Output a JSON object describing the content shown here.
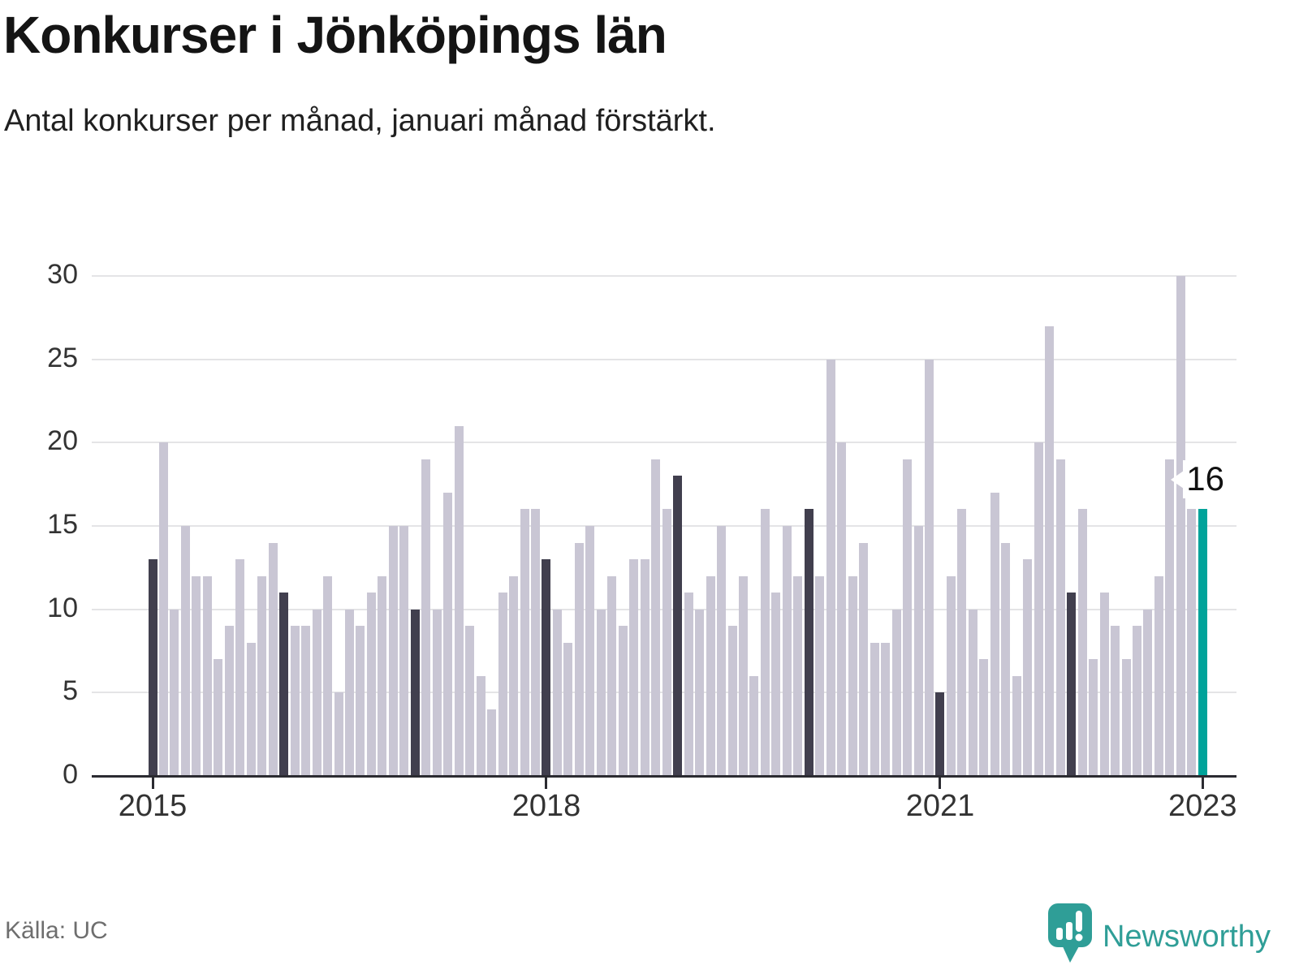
{
  "header": {
    "title": "Konkurser i Jönköpings län",
    "subtitle": "Antal konkurser per månad, januari månad förstärkt."
  },
  "footer": {
    "source": "Källa: UC",
    "brand": "Newsworthy",
    "logo_icon": "newsworthy-speech-bubble-bar-chart-icon"
  },
  "colors": {
    "background": "#ffffff",
    "bar_default": "#c9c6d4",
    "bar_january": "#413f4e",
    "bar_highlight": "#00a39a",
    "axis": "#2b2b31",
    "gridline": "#e4e4e6",
    "tick_text": "#333333",
    "brand_teal": "#2f9e97"
  },
  "chart_data": {
    "type": "bar",
    "title": "Konkurser i Jönköpings län",
    "subtitle": "Antal konkurser per månad, januari månad förstärkt.",
    "xlabel": "",
    "ylabel": "",
    "ylim": [
      0,
      30
    ],
    "yticks": [
      0,
      5,
      10,
      15,
      20,
      25,
      30
    ],
    "grid": "horizontal",
    "legend": "none",
    "x_start": "2015-01",
    "x_end": "2023-01",
    "months_per_year": 12,
    "xticks": [
      {
        "label": "2015",
        "month_index": 0
      },
      {
        "label": "2018",
        "month_index": 36
      },
      {
        "label": "2021",
        "month_index": 72
      },
      {
        "label": "2023",
        "month_index": 96
      }
    ],
    "series": [
      {
        "year": 2015,
        "values": [
          13,
          20,
          10,
          15,
          12,
          12,
          7,
          9,
          13,
          8,
          12,
          14
        ]
      },
      {
        "year": 2016,
        "values": [
          11,
          9,
          9,
          10,
          12,
          5,
          10,
          9,
          11,
          12,
          15,
          15
        ]
      },
      {
        "year": 2017,
        "values": [
          10,
          19,
          10,
          17,
          21,
          9,
          6,
          4,
          11,
          12,
          16,
          16
        ]
      },
      {
        "year": 2018,
        "values": [
          13,
          10,
          8,
          14,
          15,
          10,
          12,
          9,
          13,
          13,
          19,
          16
        ]
      },
      {
        "year": 2019,
        "values": [
          18,
          11,
          10,
          12,
          15,
          9,
          12,
          6,
          16,
          11,
          15,
          12
        ]
      },
      {
        "year": 2020,
        "values": [
          16,
          12,
          25,
          20,
          12,
          14,
          8,
          8,
          10,
          19,
          15,
          25
        ]
      },
      {
        "year": 2021,
        "values": [
          5,
          12,
          16,
          10,
          7,
          17,
          14,
          6,
          13,
          20,
          27,
          19
        ]
      },
      {
        "year": 2022,
        "values": [
          11,
          16,
          7,
          11,
          9,
          7,
          9,
          10,
          12,
          19,
          30,
          16
        ]
      },
      {
        "year": 2023,
        "values": [
          16
        ]
      }
    ],
    "highlight": {
      "month": "2023-01",
      "month_index": 96,
      "value": 16,
      "label": "16"
    },
    "style_rules": "january bars dark; latest bar (jan 2023) teal with value label"
  }
}
